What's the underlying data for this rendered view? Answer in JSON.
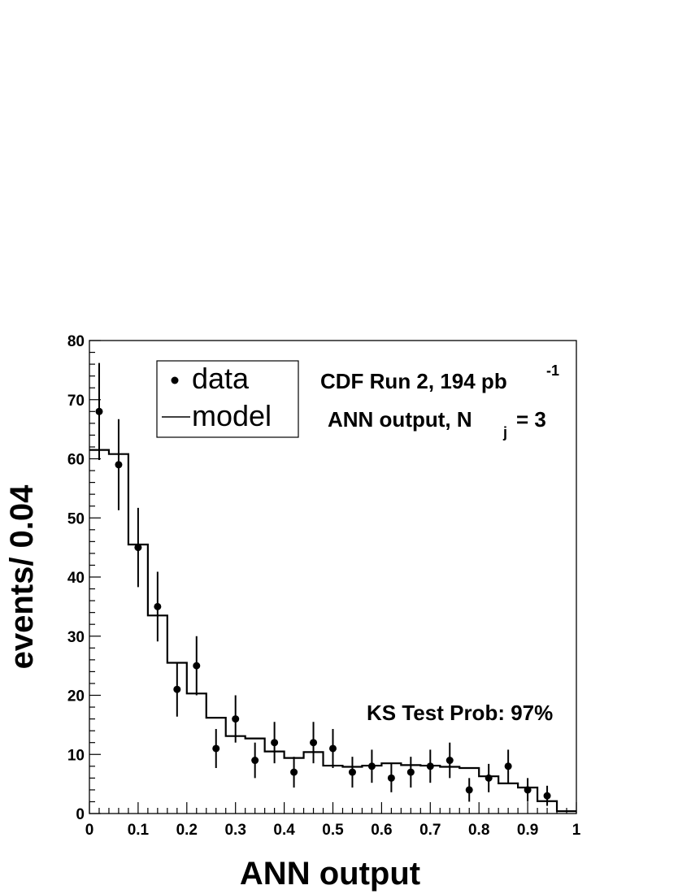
{
  "chart_data": {
    "type": "scatter",
    "xlabel": "ANN output",
    "ylabel": "events/ 0.04",
    "xlim": [
      0,
      1
    ],
    "ylim": [
      0,
      80
    ],
    "x_ticks": [
      "0",
      "0.1",
      "0.2",
      "0.3",
      "0.4",
      "0.5",
      "0.6",
      "0.7",
      "0.8",
      "0.9",
      "1"
    ],
    "y_ticks": [
      "0",
      "10",
      "20",
      "30",
      "40",
      "50",
      "60",
      "70",
      "80"
    ],
    "legend": {
      "position": "top-left",
      "entries": [
        "data",
        "model"
      ]
    },
    "annotations": {
      "line1": "CDF Run 2, 194 pb",
      "line1_sup": "-1",
      "line2_main": "ANN output, N",
      "line2_sub": "j",
      "line2_tail": "= 3",
      "ks": "KS Test Prob: 97%"
    },
    "series": [
      {
        "name": "data",
        "style": "points-with-errors",
        "x": [
          0.02,
          0.06,
          0.1,
          0.14,
          0.18,
          0.22,
          0.26,
          0.3,
          0.34,
          0.38,
          0.42,
          0.46,
          0.5,
          0.54,
          0.58,
          0.62,
          0.66,
          0.7,
          0.74,
          0.78,
          0.82,
          0.86,
          0.9,
          0.94
        ],
        "y": [
          68,
          59,
          45,
          35,
          21,
          25,
          11,
          16,
          9,
          12,
          7,
          12,
          11,
          7,
          8,
          6,
          7,
          8,
          9,
          4,
          6,
          8,
          4,
          3
        ],
        "err": [
          8.2,
          7.7,
          6.7,
          5.9,
          4.6,
          5.0,
          3.3,
          4.0,
          3.0,
          3.5,
          2.6,
          3.5,
          3.3,
          2.6,
          2.8,
          2.4,
          2.6,
          2.8,
          3.0,
          2.0,
          2.4,
          2.8,
          2.0,
          1.7
        ]
      },
      {
        "name": "model",
        "style": "step",
        "bin_edges": [
          0.0,
          0.04,
          0.08,
          0.12,
          0.16,
          0.2,
          0.24,
          0.28,
          0.32,
          0.36,
          0.4,
          0.44,
          0.48,
          0.52,
          0.56,
          0.6,
          0.64,
          0.68,
          0.72,
          0.76,
          0.8,
          0.84,
          0.88,
          0.92,
          0.96,
          1.0
        ],
        "values": [
          61.5,
          60.8,
          45.5,
          33.5,
          25.5,
          20.3,
          16.2,
          13.1,
          12.7,
          10.5,
          9.4,
          10.4,
          8.1,
          7.9,
          8.1,
          8.5,
          8.2,
          8.1,
          7.9,
          7.7,
          6.3,
          5.1,
          4.4,
          2.1,
          0.4
        ]
      }
    ]
  }
}
